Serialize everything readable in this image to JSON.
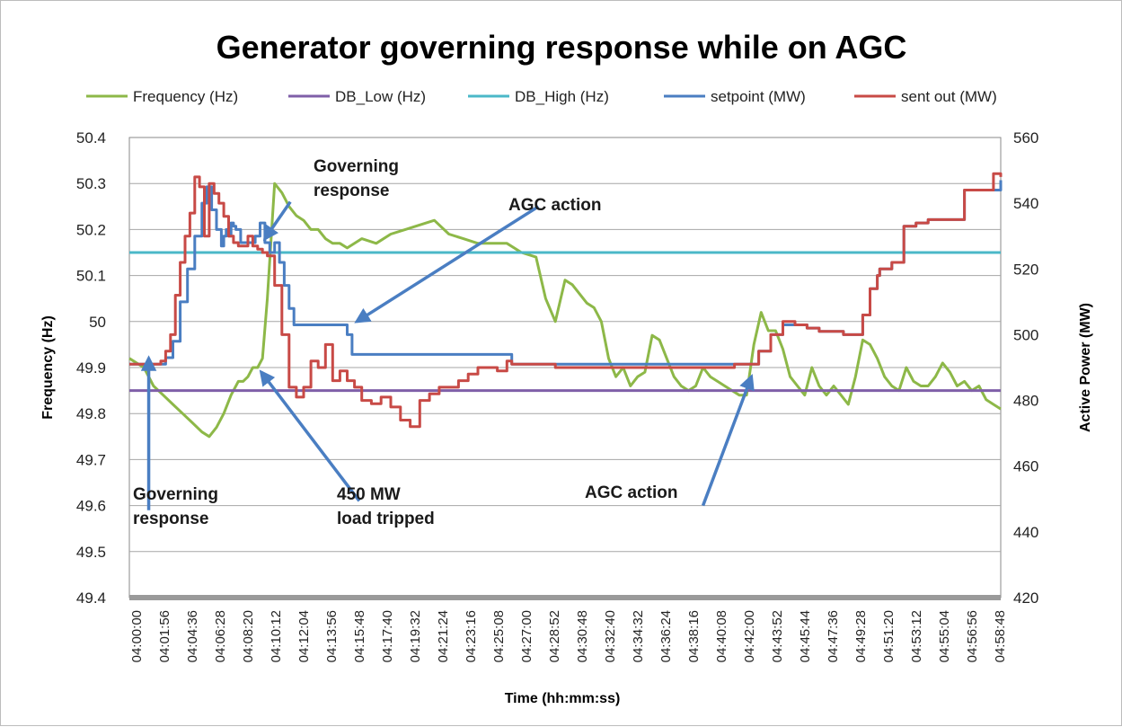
{
  "chart_data": {
    "type": "line",
    "title": "Generator governing response while on AGC",
    "xlabel": "Time (hh:mm:ss)",
    "ylabel_left": "Frequency (Hz)",
    "ylabel_right": "Active Power (MW)",
    "ylim_left": [
      49.4,
      50.4
    ],
    "ylim_right": [
      420,
      560
    ],
    "yticks_left": [
      "50.4",
      "50.3",
      "50.2",
      "50.1",
      "50",
      "49.9",
      "49.8",
      "49.7",
      "49.6",
      "49.5",
      "49.4"
    ],
    "yticks_right": [
      "560",
      "540",
      "520",
      "500",
      "480",
      "460",
      "440",
      "420"
    ],
    "xlim": [
      0,
      3600
    ],
    "xticks": [
      "04:00:00",
      "04:01:56",
      "04:04:36",
      "04:06:28",
      "04:08:20",
      "04:10:12",
      "04:12:04",
      "04:13:56",
      "04:15:48",
      "04:17:40",
      "04:19:32",
      "04:21:24",
      "04:23:16",
      "04:25:08",
      "04:27:00",
      "04:28:52",
      "04:30:48",
      "04:32:40",
      "04:34:32",
      "04:36:24",
      "04:38:16",
      "04:40:08",
      "04:42:00",
      "04:43:52",
      "04:45:44",
      "04:47:36",
      "04:49:28",
      "04:51:20",
      "04:53:12",
      "04:55:04",
      "04:56:56",
      "04:58:48"
    ],
    "grid": true,
    "legend": "top",
    "series": [
      {
        "name": "Frequency (Hz)",
        "axis": "left",
        "color": "#8db848",
        "x": [
          0,
          60,
          100,
          140,
          180,
          220,
          260,
          300,
          330,
          360,
          390,
          420,
          450,
          470,
          490,
          510,
          530,
          550,
          570,
          600,
          630,
          660,
          690,
          720,
          750,
          780,
          810,
          840,
          870,
          900,
          960,
          1020,
          1080,
          1140,
          1200,
          1260,
          1320,
          1380,
          1440,
          1500,
          1560,
          1620,
          1680,
          1720,
          1760,
          1800,
          1830,
          1860,
          1890,
          1920,
          1950,
          1980,
          2010,
          2040,
          2070,
          2100,
          2130,
          2160,
          2190,
          2220,
          2250,
          2280,
          2310,
          2340,
          2370,
          2400,
          2430,
          2460,
          2490,
          2520,
          2550,
          2580,
          2610,
          2640,
          2670,
          2700,
          2730,
          2760,
          2790,
          2820,
          2850,
          2880,
          2910,
          2940,
          2970,
          3000,
          3030,
          3060,
          3090,
          3120,
          3150,
          3180,
          3210,
          3240,
          3270,
          3300,
          3330,
          3360,
          3390,
          3420,
          3450,
          3480,
          3510,
          3540,
          3570,
          3600
        ],
        "y": [
          49.92,
          49.9,
          49.86,
          49.84,
          49.82,
          49.8,
          49.78,
          49.76,
          49.75,
          49.77,
          49.8,
          49.84,
          49.87,
          49.87,
          49.88,
          49.9,
          49.9,
          49.92,
          50.05,
          50.3,
          50.28,
          50.25,
          50.23,
          50.22,
          50.2,
          50.2,
          50.18,
          50.17,
          50.17,
          50.16,
          50.18,
          50.17,
          50.19,
          50.2,
          50.21,
          50.22,
          50.19,
          50.18,
          50.17,
          50.17,
          50.17,
          50.15,
          50.14,
          50.05,
          50.0,
          50.09,
          50.08,
          50.06,
          50.04,
          50.03,
          50.0,
          49.92,
          49.88,
          49.9,
          49.86,
          49.88,
          49.89,
          49.97,
          49.96,
          49.92,
          49.88,
          49.86,
          49.85,
          49.86,
          49.9,
          49.88,
          49.87,
          49.86,
          49.85,
          49.84,
          49.84,
          49.95,
          50.02,
          49.98,
          49.98,
          49.94,
          49.88,
          49.86,
          49.84,
          49.9,
          49.86,
          49.84,
          49.86,
          49.84,
          49.82,
          49.88,
          49.96,
          49.95,
          49.92,
          49.88,
          49.86,
          49.85,
          49.9,
          49.87,
          49.86,
          49.86,
          49.88,
          49.91,
          49.89,
          49.86,
          49.87,
          49.85,
          49.86,
          49.83,
          49.82,
          49.81
        ]
      },
      {
        "name": "DB_Low (Hz)",
        "axis": "left",
        "color": "#7f5fa8",
        "x": [
          0,
          3600
        ],
        "y": [
          49.85,
          49.85
        ]
      },
      {
        "name": "DB_High (Hz)",
        "axis": "left",
        "color": "#4bb8c8",
        "x": [
          0,
          3600
        ],
        "y": [
          50.15,
          50.15
        ]
      },
      {
        "name": "setpoint (MW)",
        "axis": "right",
        "color": "#4a7ec2",
        "x": [
          0,
          130,
          150,
          180,
          210,
          240,
          270,
          300,
          320,
          340,
          360,
          380,
          390,
          400,
          410,
          420,
          430,
          440,
          460,
          480,
          500,
          520,
          540,
          560,
          580,
          600,
          620,
          640,
          660,
          680,
          700,
          720,
          760,
          800,
          840,
          880,
          900,
          920,
          960,
          1000,
          1100,
          1200,
          1300,
          1400,
          1500,
          1560,
          1580,
          1700,
          1800,
          1900,
          2000,
          2100,
          2200,
          2300,
          2400,
          2500,
          2570,
          2600,
          2650,
          2700,
          2750,
          2800,
          2850,
          2900,
          2950,
          3000,
          3030,
          3060,
          3090,
          3100,
          3150,
          3200,
          3250,
          3300,
          3350,
          3400,
          3450,
          3500,
          3550,
          3580,
          3600
        ],
        "y": [
          491,
          491,
          493,
          498,
          510,
          520,
          530,
          540,
          545,
          538,
          532,
          527,
          530,
          532,
          530,
          534,
          533,
          532,
          528,
          528,
          528,
          530,
          534,
          528,
          525,
          528,
          522,
          515,
          508,
          503,
          503,
          503,
          503,
          503,
          503,
          503,
          500,
          494,
          494,
          494,
          494,
          494,
          494,
          494,
          494,
          494,
          491,
          491,
          491,
          491,
          491,
          491,
          491,
          491,
          491,
          491,
          491,
          495,
          500,
          503,
          503,
          502,
          501,
          501,
          500,
          500,
          506,
          514,
          518,
          520,
          522,
          533,
          534,
          535,
          535,
          535,
          544,
          544,
          544,
          544,
          547
        ]
      },
      {
        "name": "sent out (MW)",
        "axis": "right",
        "color": "#c84a46",
        "x": [
          0,
          130,
          150,
          170,
          190,
          210,
          230,
          250,
          270,
          290,
          310,
          330,
          350,
          370,
          390,
          410,
          430,
          450,
          470,
          490,
          510,
          530,
          550,
          570,
          600,
          630,
          660,
          690,
          720,
          750,
          780,
          810,
          840,
          870,
          900,
          930,
          960,
          1000,
          1040,
          1080,
          1120,
          1160,
          1200,
          1240,
          1280,
          1320,
          1360,
          1400,
          1440,
          1480,
          1520,
          1560,
          1580,
          1600,
          1640,
          1680,
          1720,
          1760,
          1800,
          1900,
          2000,
          2100,
          2200,
          2300,
          2400,
          2500,
          2570,
          2600,
          2650,
          2700,
          2750,
          2800,
          2850,
          2900,
          2950,
          3000,
          3030,
          3060,
          3090,
          3100,
          3150,
          3200,
          3250,
          3300,
          3350,
          3400,
          3450,
          3500,
          3550,
          3570,
          3600
        ],
        "y": [
          491,
          492,
          495,
          500,
          512,
          522,
          530,
          537,
          548,
          545,
          530,
          546,
          543,
          540,
          536,
          530,
          528,
          527,
          527,
          530,
          527,
          526,
          525,
          524,
          515,
          500,
          484,
          481,
          484,
          492,
          490,
          497,
          486,
          489,
          486,
          484,
          480,
          479,
          481,
          478,
          474,
          472,
          480,
          482,
          484,
          484,
          486,
          488,
          490,
          490,
          489,
          492,
          491,
          491,
          491,
          491,
          491,
          490,
          490,
          490,
          490,
          490,
          490,
          490,
          490,
          491,
          491,
          495,
          500,
          504,
          503,
          502,
          501,
          501,
          500,
          500,
          506,
          514,
          518,
          520,
          522,
          533,
          534,
          535,
          535,
          535,
          544,
          544,
          544,
          549,
          548
        ]
      }
    ],
    "annotations": [
      {
        "lines": [
          "Governing",
          "response"
        ],
        "arrow_from": [
          80,
          49.59
        ],
        "arrow_to": [
          80,
          49.92
        ]
      },
      {
        "lines": [
          "Governing",
          "response"
        ],
        "arrow_from": [
          665,
          50.26
        ],
        "arrow_to": [
          560,
          50.18
        ]
      },
      {
        "lines": [
          "AGC action"
        ],
        "arrow_from": [
          1690,
          50.25
        ],
        "arrow_to": [
          940,
          50.0
        ]
      },
      {
        "lines": [
          "450 MW",
          "load tripped"
        ],
        "arrow_from": [
          950,
          49.61
        ],
        "arrow_to": [
          545,
          49.89
        ]
      },
      {
        "lines": [
          "AGC action"
        ],
        "arrow_from": [
          2370,
          49.6
        ],
        "arrow_to": [
          2570,
          49.88
        ]
      }
    ]
  }
}
